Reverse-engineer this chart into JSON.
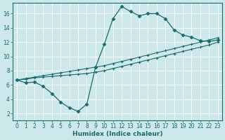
{
  "bg_color": "#cce8ea",
  "grid_color": "#b0d8dc",
  "line_color": "#1a6b6b",
  "xlabel": "Humidex (Indice chaleur)",
  "xlim": [
    -0.5,
    23.5
  ],
  "ylim": [
    1.0,
    17.5
  ],
  "xticks": [
    0,
    1,
    2,
    3,
    4,
    5,
    6,
    7,
    8,
    9,
    10,
    11,
    12,
    13,
    14,
    15,
    16,
    17,
    18,
    19,
    20,
    21,
    22,
    23
  ],
  "yticks": [
    2,
    4,
    6,
    8,
    10,
    12,
    14,
    16
  ],
  "curve_main_x": [
    0,
    1,
    2,
    3,
    4,
    5,
    6,
    7,
    8,
    9,
    10,
    11,
    12,
    13,
    14,
    15,
    16,
    17,
    18,
    19,
    20,
    21,
    22,
    23
  ],
  "curve_main_y": [
    6.7,
    6.3,
    6.4,
    5.8,
    4.8,
    3.6,
    2.8,
    2.3,
    3.3,
    8.5,
    11.7,
    15.3,
    17.0,
    16.3,
    15.7,
    16.0,
    16.0,
    15.3,
    13.7,
    13.0,
    12.7,
    12.2,
    12.1,
    12.3
  ],
  "curve_line1_x": [
    0,
    1,
    2,
    3,
    4,
    5,
    6,
    7,
    8,
    9,
    10,
    11,
    12,
    13,
    14,
    15,
    16,
    17,
    18,
    19,
    20,
    21,
    22,
    23
  ],
  "curve_line1_y": [
    6.7,
    6.8,
    7.0,
    7.1,
    7.2,
    7.3,
    7.4,
    7.5,
    7.6,
    7.8,
    8.0,
    8.3,
    8.6,
    8.9,
    9.2,
    9.5,
    9.8,
    10.1,
    10.4,
    10.7,
    11.0,
    11.3,
    11.6,
    12.0
  ],
  "curve_line2_x": [
    0,
    1,
    2,
    3,
    4,
    5,
    6,
    7,
    8,
    9,
    10,
    11,
    12,
    13,
    14,
    15,
    16,
    17,
    18,
    19,
    20,
    21,
    22,
    23
  ],
  "curve_line2_y": [
    6.7,
    6.9,
    7.1,
    7.3,
    7.5,
    7.7,
    7.9,
    8.1,
    8.3,
    8.5,
    8.7,
    9.0,
    9.3,
    9.6,
    9.9,
    10.2,
    10.5,
    10.8,
    11.1,
    11.4,
    11.7,
    12.0,
    12.3,
    12.6
  ],
  "title_fontsize": 7,
  "tick_fontsize": 5.5,
  "xlabel_fontsize": 6.5
}
